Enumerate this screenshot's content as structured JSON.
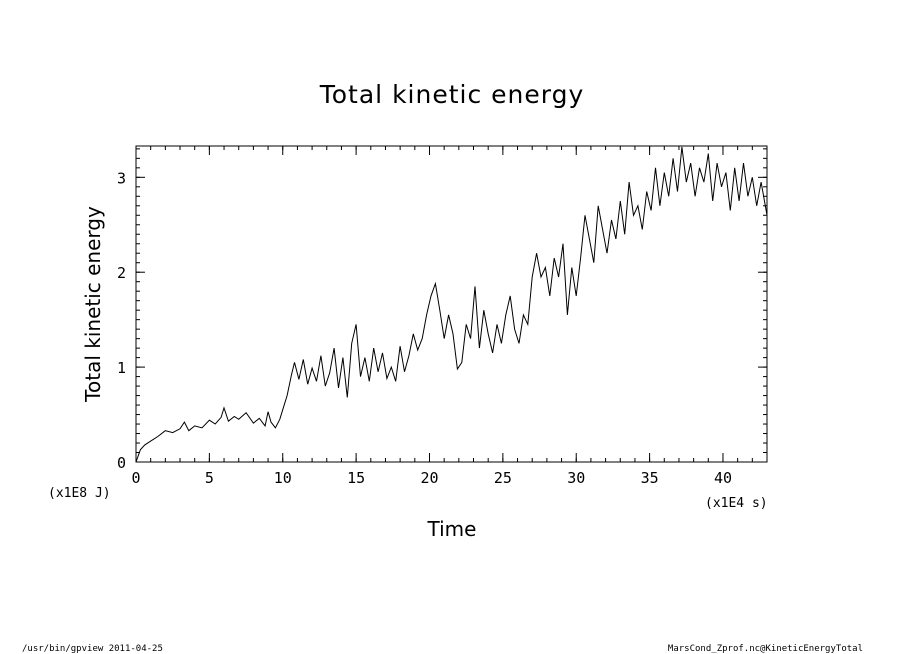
{
  "chart_data": {
    "type": "line",
    "title": "Total kinetic energy",
    "xlabel": "Time",
    "ylabel": "Total kinetic energy",
    "x_unit": "(x1E4 s)",
    "y_unit": "(x1E8 J)",
    "xlim": [
      0,
      43
    ],
    "ylim": [
      0,
      3.33
    ],
    "x_major_ticks": [
      0,
      5,
      10,
      15,
      20,
      25,
      30,
      35,
      40
    ],
    "y_major_ticks": [
      0,
      1,
      2,
      3
    ],
    "x_minor_step": 1,
    "y_minor_step": 0.1,
    "grid": false,
    "series": [
      {
        "x": [
          0,
          0.3,
          0.6,
          1.0,
          1.5,
          2.0,
          2.5,
          3.0,
          3.3,
          3.6,
          4.0,
          4.5,
          5.0,
          5.4,
          5.8,
          6.0,
          6.3,
          6.7,
          7.0,
          7.5,
          8.0,
          8.4,
          8.8,
          9.0,
          9.2,
          9.5,
          9.8,
          10.0,
          10.3,
          10.6,
          10.8,
          11.1,
          11.4,
          11.7,
          12.0,
          12.3,
          12.6,
          12.9,
          13.2,
          13.5,
          13.8,
          14.1,
          14.4,
          14.7,
          15.0,
          15.3,
          15.6,
          15.9,
          16.2,
          16.5,
          16.8,
          17.1,
          17.4,
          17.7,
          18.0,
          18.3,
          18.6,
          18.9,
          19.2,
          19.5,
          19.8,
          20.1,
          20.4,
          20.7,
          21.0,
          21.3,
          21.6,
          21.9,
          22.2,
          22.5,
          22.8,
          23.1,
          23.4,
          23.7,
          24.0,
          24.3,
          24.6,
          24.9,
          25.2,
          25.5,
          25.8,
          26.1,
          26.4,
          26.7,
          27.0,
          27.3,
          27.6,
          27.9,
          28.2,
          28.5,
          28.8,
          29.1,
          29.4,
          29.7,
          30.0,
          30.3,
          30.6,
          30.9,
          31.2,
          31.5,
          31.8,
          32.1,
          32.4,
          32.7,
          33.0,
          33.3,
          33.6,
          33.9,
          34.2,
          34.5,
          34.8,
          35.1,
          35.4,
          35.7,
          36.0,
          36.3,
          36.6,
          36.9,
          37.2,
          37.5,
          37.8,
          38.1,
          38.4,
          38.7,
          39.0,
          39.3,
          39.6,
          39.9,
          40.2,
          40.5,
          40.8,
          41.1,
          41.4,
          41.7,
          42.0,
          42.3,
          42.6,
          43.0
        ],
        "values": [
          0.0,
          0.13,
          0.18,
          0.22,
          0.27,
          0.33,
          0.31,
          0.35,
          0.42,
          0.33,
          0.38,
          0.36,
          0.44,
          0.4,
          0.47,
          0.57,
          0.43,
          0.48,
          0.45,
          0.52,
          0.41,
          0.46,
          0.38,
          0.53,
          0.42,
          0.36,
          0.45,
          0.55,
          0.7,
          0.92,
          1.05,
          0.87,
          1.08,
          0.82,
          0.99,
          0.85,
          1.12,
          0.8,
          0.94,
          1.2,
          0.78,
          1.1,
          0.68,
          1.25,
          1.45,
          0.9,
          1.1,
          0.85,
          1.2,
          0.95,
          1.15,
          0.88,
          1.0,
          0.85,
          1.22,
          0.95,
          1.12,
          1.35,
          1.18,
          1.3,
          1.55,
          1.75,
          1.88,
          1.6,
          1.3,
          1.55,
          1.35,
          0.98,
          1.05,
          1.45,
          1.3,
          1.85,
          1.2,
          1.6,
          1.35,
          1.15,
          1.45,
          1.25,
          1.55,
          1.75,
          1.4,
          1.25,
          1.55,
          1.45,
          1.95,
          2.2,
          1.95,
          2.05,
          1.75,
          2.15,
          1.95,
          2.3,
          1.55,
          2.05,
          1.75,
          2.15,
          2.6,
          2.35,
          2.1,
          2.7,
          2.45,
          2.2,
          2.55,
          2.35,
          2.75,
          2.4,
          2.95,
          2.6,
          2.7,
          2.45,
          2.85,
          2.65,
          3.1,
          2.7,
          3.05,
          2.8,
          3.2,
          2.85,
          3.32,
          2.95,
          3.15,
          2.8,
          3.1,
          2.95,
          3.25,
          2.75,
          3.15,
          2.9,
          3.05,
          2.65,
          3.1,
          2.75,
          3.15,
          2.8,
          3.0,
          2.7,
          2.95,
          2.6
        ]
      }
    ]
  },
  "footer": {
    "left": "/usr/bin/gpview  2011-04-25",
    "right": "MarsCond_Zprof.nc@KineticEnergyTotal"
  }
}
